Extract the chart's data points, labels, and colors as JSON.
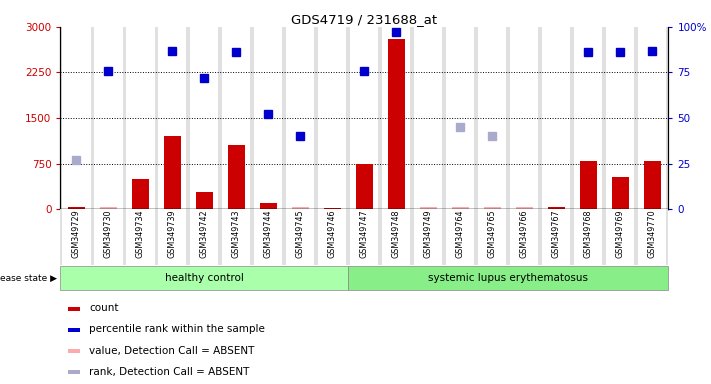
{
  "title": "GDS4719 / 231688_at",
  "samples": [
    "GSM349729",
    "GSM349730",
    "GSM349734",
    "GSM349739",
    "GSM349742",
    "GSM349743",
    "GSM349744",
    "GSM349745",
    "GSM349746",
    "GSM349747",
    "GSM349748",
    "GSM349749",
    "GSM349764",
    "GSM349765",
    "GSM349766",
    "GSM349767",
    "GSM349768",
    "GSM349769",
    "GSM349770"
  ],
  "n_healthy": 9,
  "n_lupus": 10,
  "count_values": [
    30,
    30,
    500,
    1200,
    280,
    1050,
    100,
    30,
    25,
    750,
    2800,
    30,
    30,
    30,
    30,
    30,
    800,
    530,
    800
  ],
  "absent_count": [
    false,
    true,
    false,
    false,
    false,
    false,
    false,
    true,
    false,
    false,
    false,
    true,
    true,
    true,
    true,
    false,
    false,
    false,
    false
  ],
  "percentile_values": [
    27,
    76,
    null,
    87,
    72,
    86,
    52,
    40,
    null,
    76,
    97,
    null,
    45,
    40,
    null,
    null,
    86,
    86,
    87
  ],
  "absent_percentile": [
    true,
    false,
    null,
    false,
    false,
    false,
    false,
    false,
    null,
    false,
    false,
    null,
    true,
    true,
    null,
    null,
    false,
    false,
    false
  ],
  "ylim_left": [
    0,
    3000
  ],
  "ylim_right": [
    0,
    100
  ],
  "yticks_left": [
    0,
    750,
    1500,
    2250,
    3000
  ],
  "yticks_right": [
    0,
    25,
    50,
    75,
    100
  ],
  "bar_color_present": "#cc0000",
  "bar_color_absent": "#ffaaaa",
  "dot_color_present": "#0000cc",
  "dot_color_absent": "#aaaacc",
  "group_healthy_color": "#aaffaa",
  "group_lupus_color": "#88ee88",
  "legend_items": [
    {
      "label": "count",
      "color": "#cc0000"
    },
    {
      "label": "percentile rank within the sample",
      "color": "#0000cc"
    },
    {
      "label": "value, Detection Call = ABSENT",
      "color": "#ffaaaa"
    },
    {
      "label": "rank, Detection Call = ABSENT",
      "color": "#aaaacc"
    }
  ]
}
